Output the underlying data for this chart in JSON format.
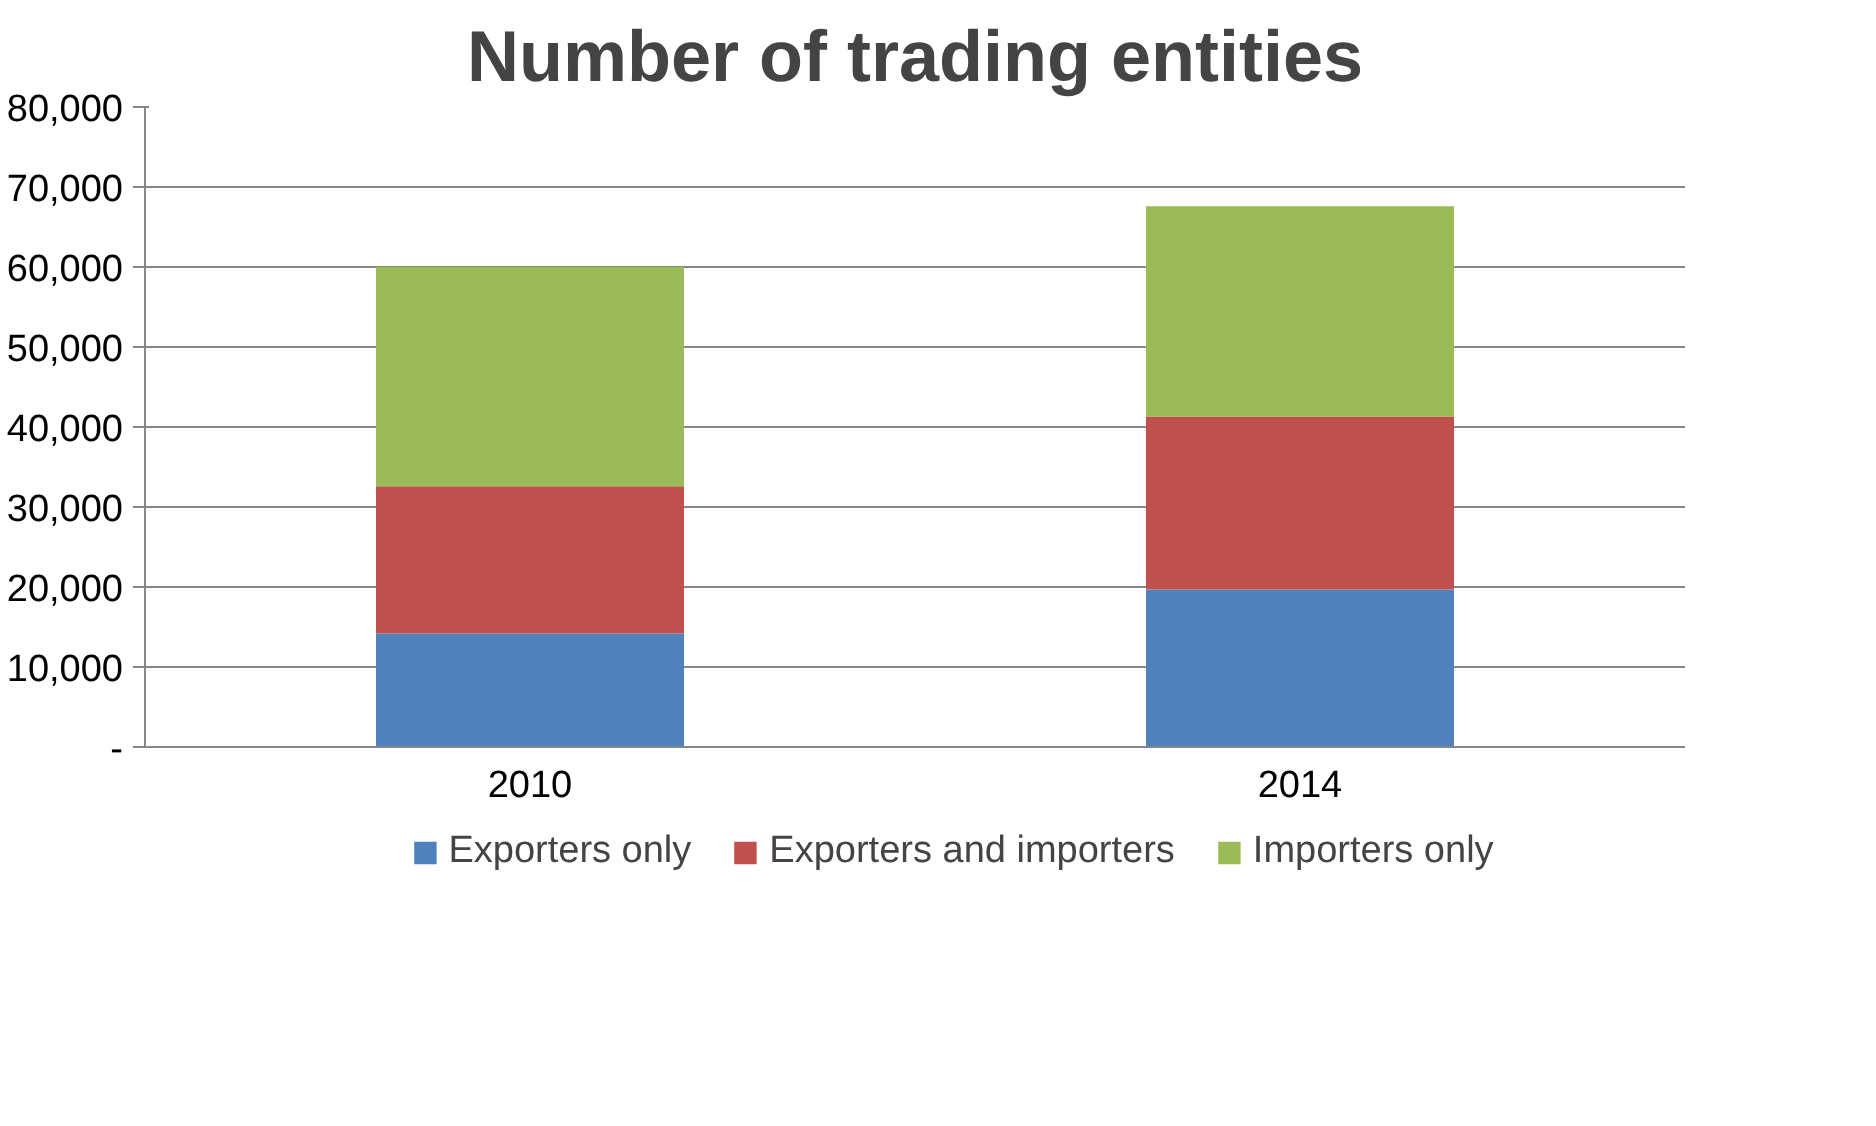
{
  "chart_data": {
    "type": "bar",
    "title": "Number of trading entities",
    "categories": [
      "2010",
      "2014"
    ],
    "stacked": true,
    "series": [
      {
        "name": "Exporters only",
        "color": "#4f81bd",
        "values": [
          14200,
          19700
        ]
      },
      {
        "name": "Exporters and importers",
        "color": "#c0504d",
        "values": [
          18400,
          21600
        ]
      },
      {
        "name": "Importers only",
        "color": "#9bbb59",
        "values": [
          27400,
          26300
        ]
      }
    ],
    "ylim": [
      0,
      80000
    ],
    "yticks": [
      {
        "value": 0,
        "label": "-"
      },
      {
        "value": 10000,
        "label": "10,000"
      },
      {
        "value": 20000,
        "label": "20,000"
      },
      {
        "value": 30000,
        "label": "30,000"
      },
      {
        "value": 40000,
        "label": "40,000"
      },
      {
        "value": 50000,
        "label": "50,000"
      },
      {
        "value": 60000,
        "label": "60,000"
      },
      {
        "value": 70000,
        "label": "70,000"
      },
      {
        "value": 80000,
        "label": "80,000"
      }
    ],
    "grid": "y",
    "legend": "bottom"
  }
}
